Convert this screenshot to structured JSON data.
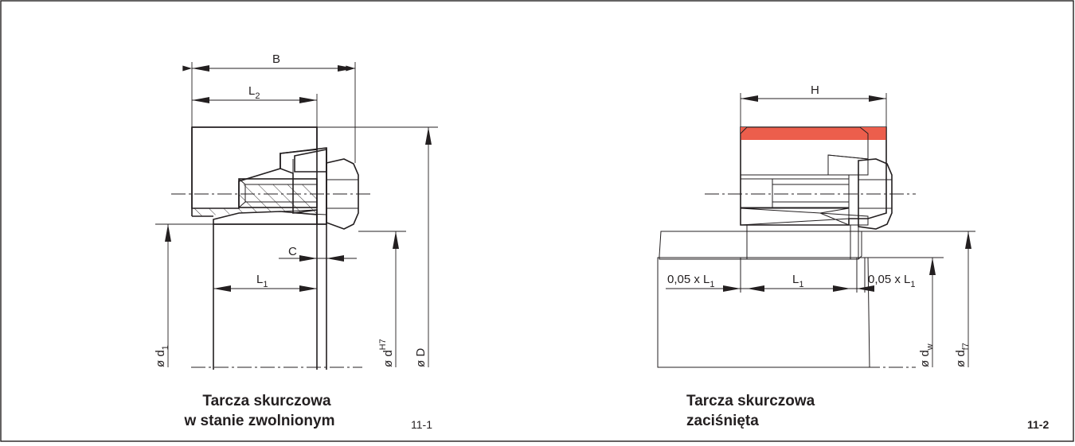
{
  "colors": {
    "red_dark": "#ec5e4c",
    "red_main": "#f27a63",
    "red_light": "#f7b49d",
    "shaft_grey": "#d5d5d5",
    "hub_grey": "#ececec",
    "line": "#231f20"
  },
  "left": {
    "dim_B": "B",
    "dim_L2": "L",
    "dim_L2_sub": "2",
    "dim_C": "C",
    "dim_L1": "L",
    "dim_L1_sub": "1",
    "d1": "ø d",
    "d1_sub": "1",
    "dH7": "ø d",
    "dH7_sup": "H7",
    "dD": "ø D",
    "caption_line1": "Tarcza skurczowa",
    "caption_line2": "w stanie zwolnionym",
    "figure_number": "11-1"
  },
  "right": {
    "dim_H": "H",
    "dim_005L1_left": "0,05 x L",
    "dim_005L1_left_sub": "1",
    "dim_L1": "L",
    "dim_L1_sub": "1",
    "dim_005L1_right": "0,05 x L",
    "dim_005L1_right_sub": "1",
    "dw": "ø d",
    "dw_sub": "w",
    "df7": "ø d",
    "df7_sub": "f7",
    "caption_line1": "Tarcza skurczowa",
    "caption_line2": "zaciśnięta",
    "figure_number": "11-2"
  }
}
